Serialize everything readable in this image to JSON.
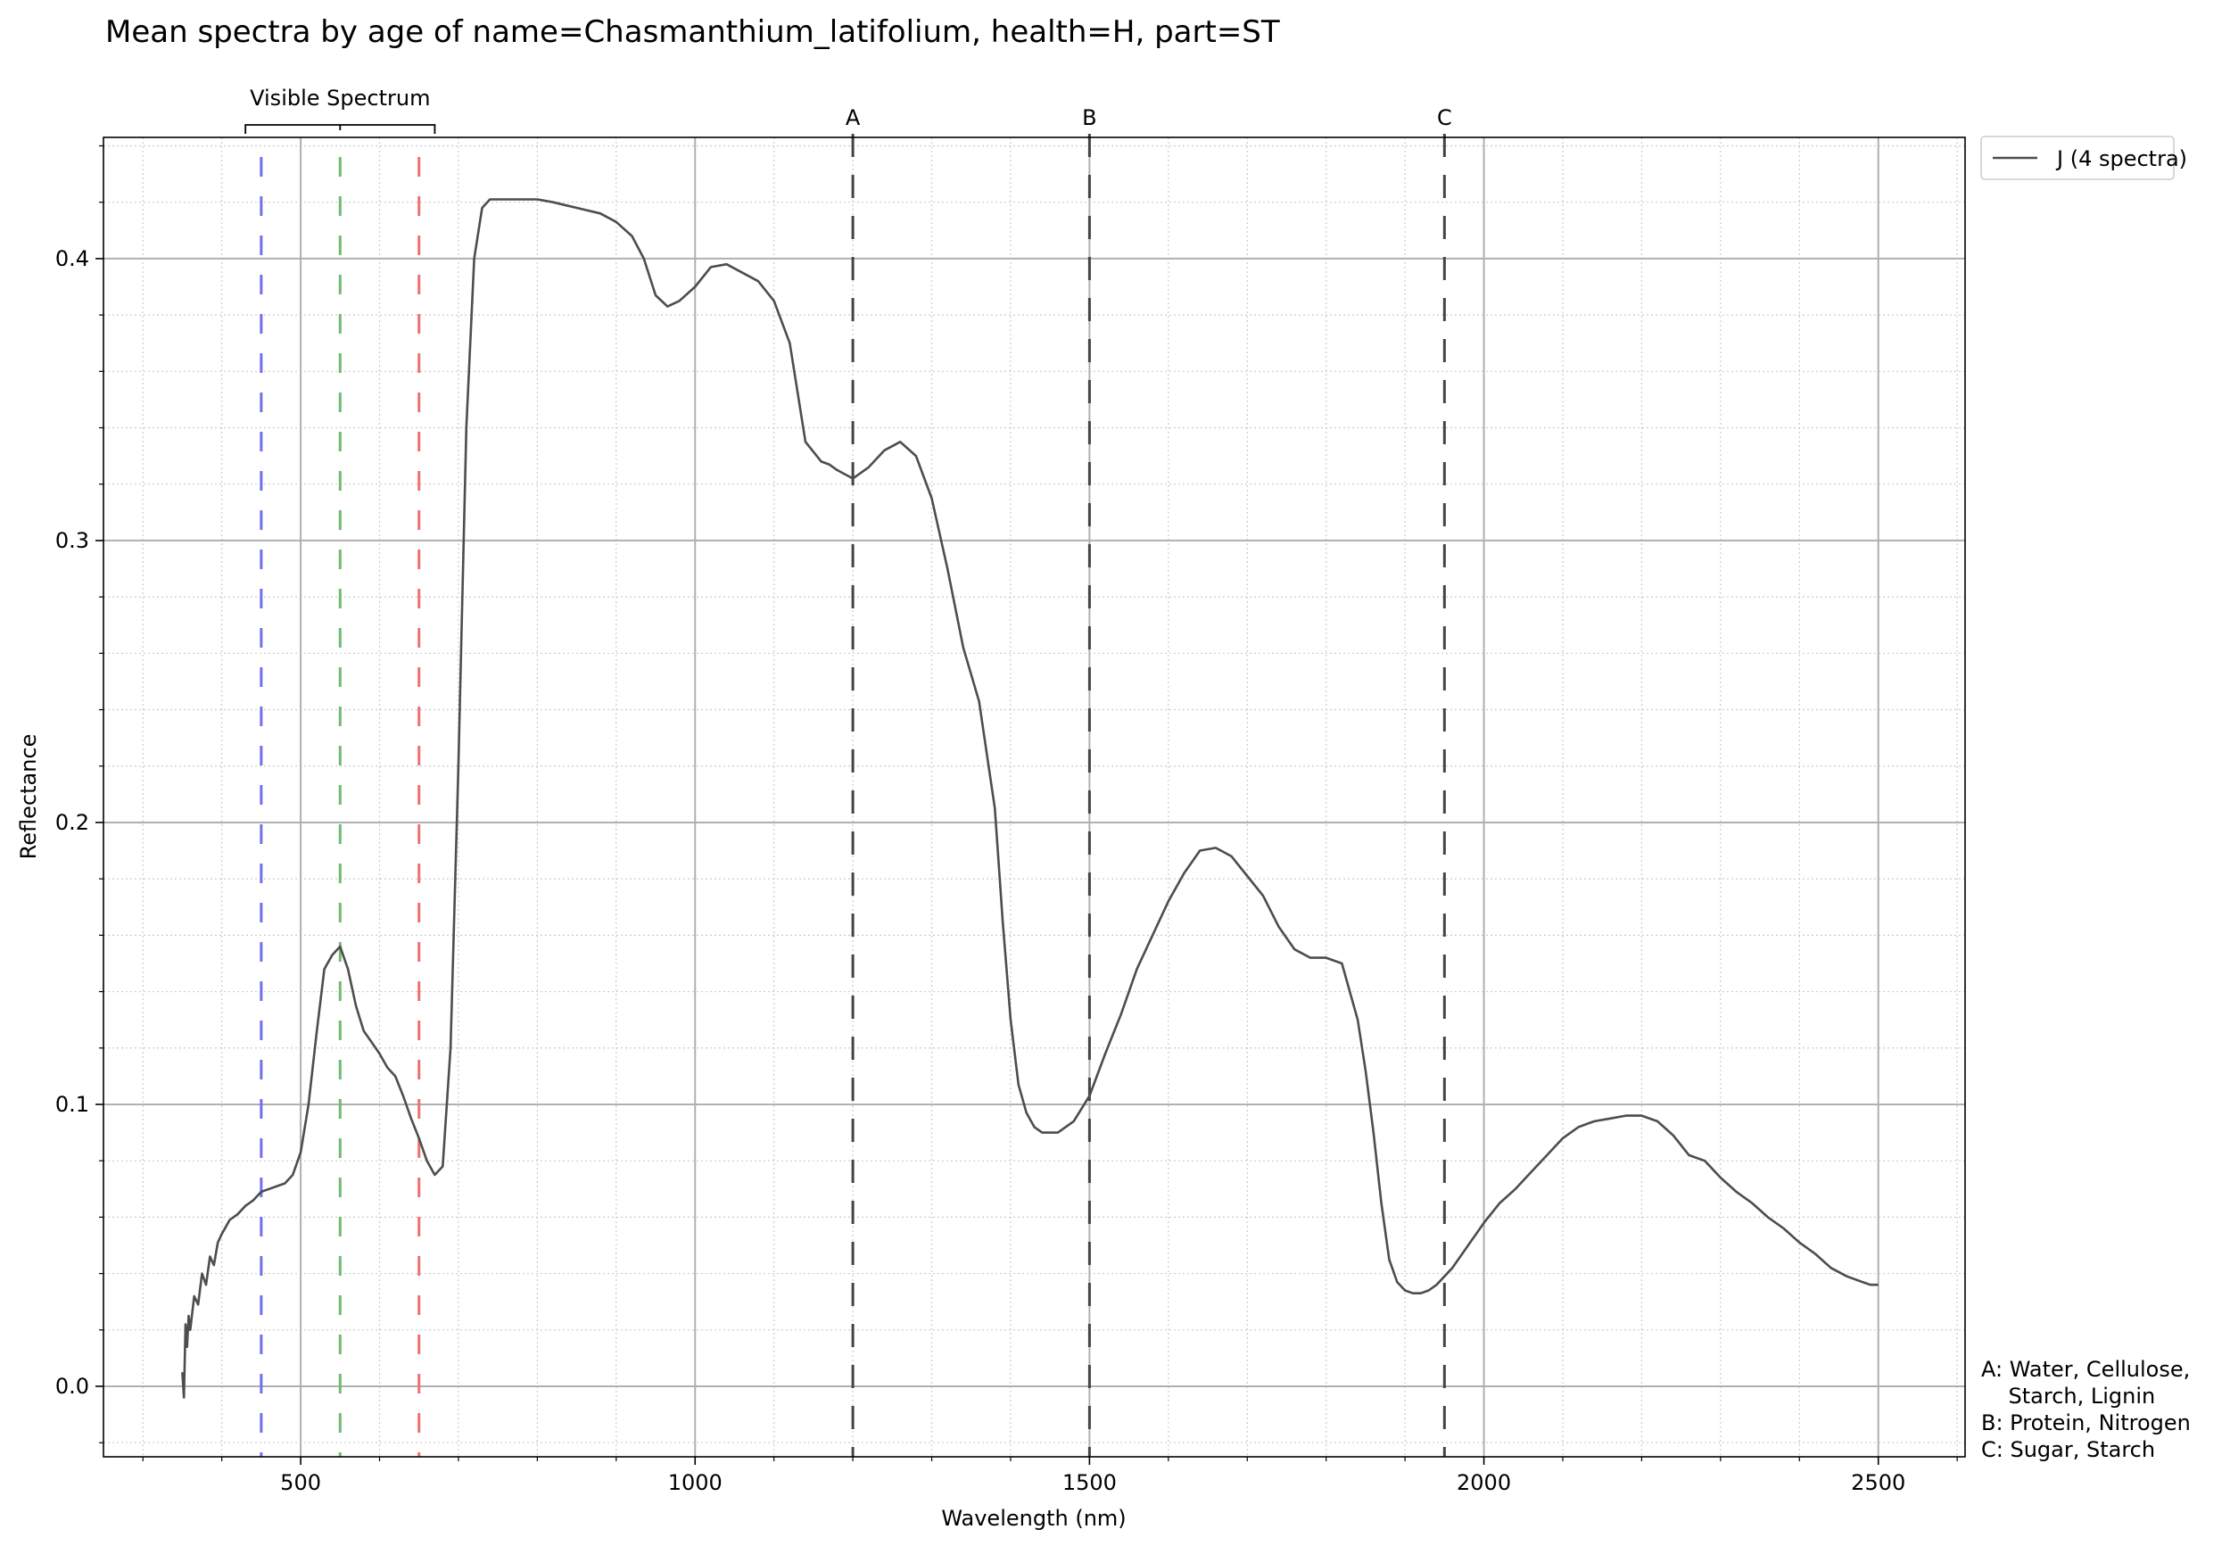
{
  "colors": {
    "series": "#4d4d4d",
    "major_grid": "#b0b0b0",
    "minor_grid": "#cccccc",
    "blue_marker": "#7070ee",
    "green_marker": "#70bb70",
    "red_marker": "#ee7070",
    "band_marker": "#444444",
    "axes": "#000000"
  },
  "chart_data": {
    "type": "line",
    "title": "Mean spectra by age of name=Chasmanthium_latifolium, health=H, part=ST",
    "xlabel": "Wavelength (nm)",
    "ylabel": "Reflectance",
    "xlim": [
      250,
      2610
    ],
    "ylim": [
      -0.025,
      0.443
    ],
    "xticks": [
      500,
      1000,
      1500,
      2000,
      2500
    ],
    "xtick_labels": [
      "500",
      "1000",
      "1500",
      "2000",
      "2500"
    ],
    "yticks": [
      0.0,
      0.1,
      0.2,
      0.3,
      0.4
    ],
    "ytick_labels": [
      "0.0",
      "0.1",
      "0.2",
      "0.3",
      "0.4"
    ],
    "grid": true,
    "legend": {
      "placement": "outside-top-right",
      "entries": [
        "J (4 spectra)"
      ]
    },
    "visible_spectrum": {
      "label": "Visible Spectrum",
      "range": [
        430,
        670
      ],
      "lines": [
        {
          "x": 450,
          "color": "blue"
        },
        {
          "x": 550,
          "color": "green"
        },
        {
          "x": 650,
          "color": "red"
        }
      ]
    },
    "bands": [
      {
        "label": "A",
        "x": 1200
      },
      {
        "label": "B",
        "x": 1500
      },
      {
        "label": "C",
        "x": 1950
      }
    ],
    "notes": [
      "A: Water, Cellulose,",
      "    Starch, Lignin",
      "B: Protein, Nitrogen",
      "C: Sugar, Starch"
    ],
    "series": [
      {
        "name": "J (4 spectra)",
        "x": [
          350,
          352,
          354,
          356,
          358,
          360,
          365,
          370,
          375,
          380,
          385,
          390,
          395,
          400,
          410,
          420,
          430,
          440,
          450,
          460,
          470,
          480,
          490,
          500,
          510,
          520,
          530,
          540,
          550,
          560,
          570,
          580,
          590,
          600,
          610,
          620,
          630,
          640,
          650,
          660,
          670,
          680,
          690,
          700,
          710,
          720,
          730,
          740,
          750,
          760,
          780,
          800,
          820,
          850,
          880,
          900,
          920,
          935,
          950,
          965,
          980,
          1000,
          1020,
          1040,
          1060,
          1080,
          1100,
          1120,
          1140,
          1160,
          1170,
          1180,
          1200,
          1220,
          1240,
          1260,
          1280,
          1300,
          1320,
          1340,
          1360,
          1380,
          1390,
          1400,
          1410,
          1420,
          1430,
          1440,
          1460,
          1480,
          1500,
          1520,
          1540,
          1560,
          1580,
          1600,
          1620,
          1640,
          1660,
          1680,
          1700,
          1720,
          1740,
          1760,
          1780,
          1800,
          1820,
          1840,
          1850,
          1860,
          1870,
          1880,
          1890,
          1900,
          1910,
          1920,
          1930,
          1940,
          1960,
          1980,
          2000,
          2020,
          2040,
          2060,
          2080,
          2100,
          2120,
          2140,
          2160,
          2180,
          2200,
          2220,
          2240,
          2260,
          2280,
          2300,
          2320,
          2340,
          2360,
          2380,
          2400,
          2420,
          2440,
          2460,
          2480,
          2490,
          2500
        ],
        "values": [
          0.005,
          -0.004,
          0.022,
          0.014,
          0.025,
          0.02,
          0.032,
          0.029,
          0.04,
          0.036,
          0.046,
          0.043,
          0.051,
          0.054,
          0.059,
          0.061,
          0.064,
          0.066,
          0.069,
          0.07,
          0.071,
          0.072,
          0.075,
          0.083,
          0.1,
          0.125,
          0.148,
          0.153,
          0.156,
          0.148,
          0.135,
          0.126,
          0.122,
          0.118,
          0.113,
          0.11,
          0.103,
          0.095,
          0.088,
          0.08,
          0.075,
          0.078,
          0.12,
          0.22,
          0.34,
          0.4,
          0.418,
          0.421,
          0.421,
          0.421,
          0.421,
          0.421,
          0.42,
          0.418,
          0.416,
          0.413,
          0.408,
          0.4,
          0.387,
          0.383,
          0.385,
          0.39,
          0.397,
          0.398,
          0.395,
          0.392,
          0.385,
          0.37,
          0.335,
          0.328,
          0.327,
          0.325,
          0.322,
          0.326,
          0.332,
          0.335,
          0.33,
          0.315,
          0.29,
          0.262,
          0.243,
          0.205,
          0.165,
          0.13,
          0.107,
          0.097,
          0.092,
          0.09,
          0.09,
          0.094,
          0.103,
          0.118,
          0.132,
          0.148,
          0.16,
          0.172,
          0.182,
          0.19,
          0.191,
          0.188,
          0.181,
          0.174,
          0.163,
          0.155,
          0.152,
          0.152,
          0.15,
          0.13,
          0.112,
          0.09,
          0.065,
          0.045,
          0.037,
          0.034,
          0.033,
          0.033,
          0.034,
          0.036,
          0.042,
          0.05,
          0.058,
          0.065,
          0.07,
          0.076,
          0.082,
          0.088,
          0.092,
          0.094,
          0.095,
          0.096,
          0.096,
          0.094,
          0.089,
          0.082,
          0.08,
          0.074,
          0.069,
          0.065,
          0.06,
          0.056,
          0.051,
          0.047,
          0.042,
          0.039,
          0.037,
          0.036,
          0.036
        ]
      }
    ]
  }
}
